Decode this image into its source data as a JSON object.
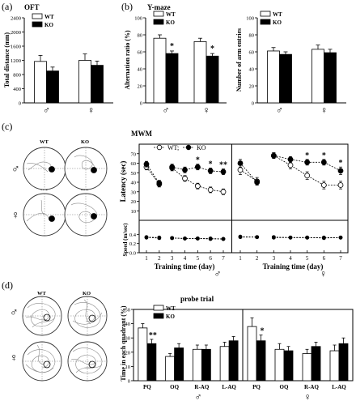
{
  "panel_labels": [
    "(a)",
    "(b)",
    "(c)",
    "(d)"
  ],
  "legend": {
    "wt": "WT",
    "ko": "KO"
  },
  "sex": {
    "male": "♂",
    "female": "♀"
  },
  "star": "*",
  "double_star": "**",
  "trace_labels": {
    "wt": "WT",
    "ko": "KO"
  },
  "colors": {
    "wt": "#ffffff",
    "ko": "#000000",
    "axis": "#000000",
    "trace": "#8a8a8a",
    "target": "#000000"
  },
  "chart_data": [
    {
      "id": "oft",
      "type": "bar",
      "title": "OFT",
      "ylabel": "Total distance (mm)",
      "ylim": [
        0,
        2400
      ],
      "yticks": [
        0,
        400,
        800,
        1200,
        1600,
        2000,
        2400
      ],
      "categories": [
        "♂",
        "♀"
      ],
      "series": [
        {
          "name": "WT",
          "values": [
            1170,
            1200
          ],
          "errors": [
            170,
            180
          ]
        },
        {
          "name": "KO",
          "values": [
            900,
            1060
          ],
          "errors": [
            110,
            120
          ]
        }
      ]
    },
    {
      "id": "ymaze_alt",
      "type": "bar",
      "title": "Y-maze",
      "ylabel": "Alternation ratio (%)",
      "ylim": [
        0,
        100
      ],
      "yticks": [
        0,
        20,
        40,
        60,
        80,
        100
      ],
      "categories": [
        "♂",
        "♀"
      ],
      "series": [
        {
          "name": "WT",
          "values": [
            76,
            72
          ],
          "errors": [
            4,
            4
          ]
        },
        {
          "name": "KO",
          "values": [
            58,
            55
          ],
          "errors": [
            3,
            3
          ]
        }
      ],
      "significance": [
        {
          "category": 0,
          "series": 1,
          "text": "*"
        },
        {
          "category": 1,
          "series": 1,
          "text": "*"
        }
      ]
    },
    {
      "id": "ymaze_entries",
      "type": "bar",
      "ylabel": "Number of arm entries",
      "ylim": [
        0,
        100
      ],
      "yticks": [
        0,
        20,
        40,
        60,
        80,
        100
      ],
      "categories": [
        "♂",
        "♀"
      ],
      "series": [
        {
          "name": "WT",
          "values": [
            61,
            63
          ],
          "errors": [
            4,
            5
          ]
        },
        {
          "name": "KO",
          "values": [
            57,
            59
          ],
          "errors": [
            3,
            4
          ]
        }
      ]
    },
    {
      "id": "mwm",
      "type": "line",
      "title": "MWM",
      "legend_text": [
        "WT;",
        "KO"
      ],
      "latency_ylabel": "Latency (sec)",
      "speed_ylabel": "Speed (m/sec)",
      "xlabel": "Training time (day)",
      "x": [
        1,
        2,
        3,
        4,
        5,
        6,
        7
      ],
      "latency_ylim": [
        0,
        80
      ],
      "latency_yticks": [
        10,
        20,
        30,
        40,
        50,
        60,
        70
      ],
      "speed_ylim": [
        0.0,
        0.6
      ],
      "speed_yticks": [
        0.0,
        0.2,
        0.4
      ],
      "male": {
        "latency": [
          {
            "name": "WT",
            "values": [
              56,
              38,
              55,
              44,
              36,
              32,
              30
            ],
            "errors": [
              3,
              3,
              3,
              3,
              3,
              3,
              3
            ]
          },
          {
            "name": "KO",
            "values": [
              59,
              39,
              56,
              53,
              56,
              52,
              51
            ],
            "errors": [
              3,
              3,
              3,
              3,
              3,
              3,
              3
            ]
          }
        ],
        "speed": [
          {
            "name": "WT",
            "values": [
              0.34,
              0.33,
              0.32,
              0.31,
              0.31,
              0.31,
              0.3
            ],
            "errors": [
              0.02,
              0.02,
              0.02,
              0.02,
              0.02,
              0.02,
              0.02
            ]
          },
          {
            "name": "KO",
            "values": [
              0.33,
              0.32,
              0.32,
              0.31,
              0.31,
              0.3,
              0.3
            ],
            "errors": [
              0.02,
              0.02,
              0.02,
              0.02,
              0.02,
              0.02,
              0.02
            ]
          }
        ],
        "significance": [
          {
            "day": 5,
            "text": "*"
          },
          {
            "day": 6,
            "text": "*"
          },
          {
            "day": 7,
            "text": "**"
          }
        ]
      },
      "female": {
        "latency": [
          {
            "name": "WT",
            "values": [
              53,
              41,
              68,
              58,
              47,
              37,
              37
            ],
            "errors": [
              5,
              4,
              3,
              4,
              4,
              4,
              4
            ]
          },
          {
            "name": "KO",
            "values": [
              60,
              40,
              68,
              64,
              61,
              61,
              52
            ],
            "errors": [
              4,
              3,
              3,
              3,
              3,
              3,
              4
            ]
          }
        ],
        "speed": [
          {
            "name": "WT",
            "values": [
              0.34,
              0.34,
              0.33,
              0.33,
              0.33,
              0.32,
              0.33
            ],
            "errors": [
              0.02,
              0.02,
              0.02,
              0.02,
              0.02,
              0.02,
              0.02
            ]
          },
          {
            "name": "KO",
            "values": [
              0.35,
              0.34,
              0.34,
              0.33,
              0.33,
              0.33,
              0.33
            ],
            "errors": [
              0.02,
              0.02,
              0.02,
              0.02,
              0.02,
              0.02,
              0.02
            ]
          }
        ],
        "significance": [
          {
            "day": 5,
            "text": "*"
          },
          {
            "day": 6,
            "text": "*"
          },
          {
            "day": 7,
            "text": "*"
          }
        ]
      }
    },
    {
      "id": "probe",
      "type": "bar",
      "title": "probe trial",
      "ylabel": "Time in each quadrant (%)",
      "ylim": [
        0,
        50
      ],
      "yticks": [
        0,
        10,
        20,
        30,
        40,
        50
      ],
      "groups": [
        {
          "sex": "♂",
          "categories": [
            "PQ",
            "OQ",
            "R-AQ",
            "L-AQ"
          ],
          "series": [
            {
              "name": "WT",
              "values": [
                37,
                17,
                22,
                24
              ],
              "errors": [
                3,
                2,
                3,
                3
              ]
            },
            {
              "name": "KO",
              "values": [
                26,
                23,
                22,
                28
              ],
              "errors": [
                3,
                3,
                3,
                3
              ]
            }
          ],
          "significance": [
            {
              "category": 0,
              "text": "**"
            }
          ]
        },
        {
          "sex": "♀",
          "categories": [
            "PQ",
            "OQ",
            "R-AQ",
            "L-AQ"
          ],
          "series": [
            {
              "name": "WT",
              "values": [
                38,
                22,
                19,
                21
              ],
              "errors": [
                6,
                4,
                3,
                4
              ]
            },
            {
              "name": "KO",
              "values": [
                28,
                21,
                24,
                26
              ],
              "errors": [
                4,
                3,
                3,
                4
              ]
            }
          ],
          "significance": [
            {
              "category": 0,
              "text": "*"
            }
          ]
        }
      ]
    }
  ]
}
